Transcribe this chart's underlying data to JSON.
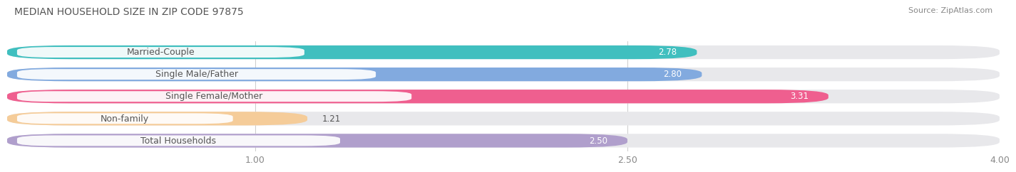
{
  "title": "MEDIAN HOUSEHOLD SIZE IN ZIP CODE 97875",
  "source": "Source: ZipAtlas.com",
  "categories": [
    "Married-Couple",
    "Single Male/Father",
    "Single Female/Mother",
    "Non-family",
    "Total Households"
  ],
  "values": [
    2.78,
    2.8,
    3.31,
    1.21,
    2.5
  ],
  "bar_colors": [
    "#40bfbf",
    "#82aadf",
    "#ef5f8f",
    "#f5cc99",
    "#b09fcc"
  ],
  "bar_height": 0.62,
  "xlim": [
    0,
    4.0
  ],
  "xmin": 0,
  "xticks": [
    1.0,
    2.5,
    4.0
  ],
  "xticklabels": [
    "1.00",
    "2.50",
    "4.00"
  ],
  "background_color": "#ffffff",
  "bar_bg_color": "#e8e8eb",
  "title_fontsize": 10,
  "source_fontsize": 8,
  "label_fontsize": 9,
  "value_fontsize": 8.5,
  "label_box_color": "#ffffff",
  "label_text_color": "#555555",
  "value_text_color_light": "#ffffff",
  "value_text_color_dark": "#555555"
}
